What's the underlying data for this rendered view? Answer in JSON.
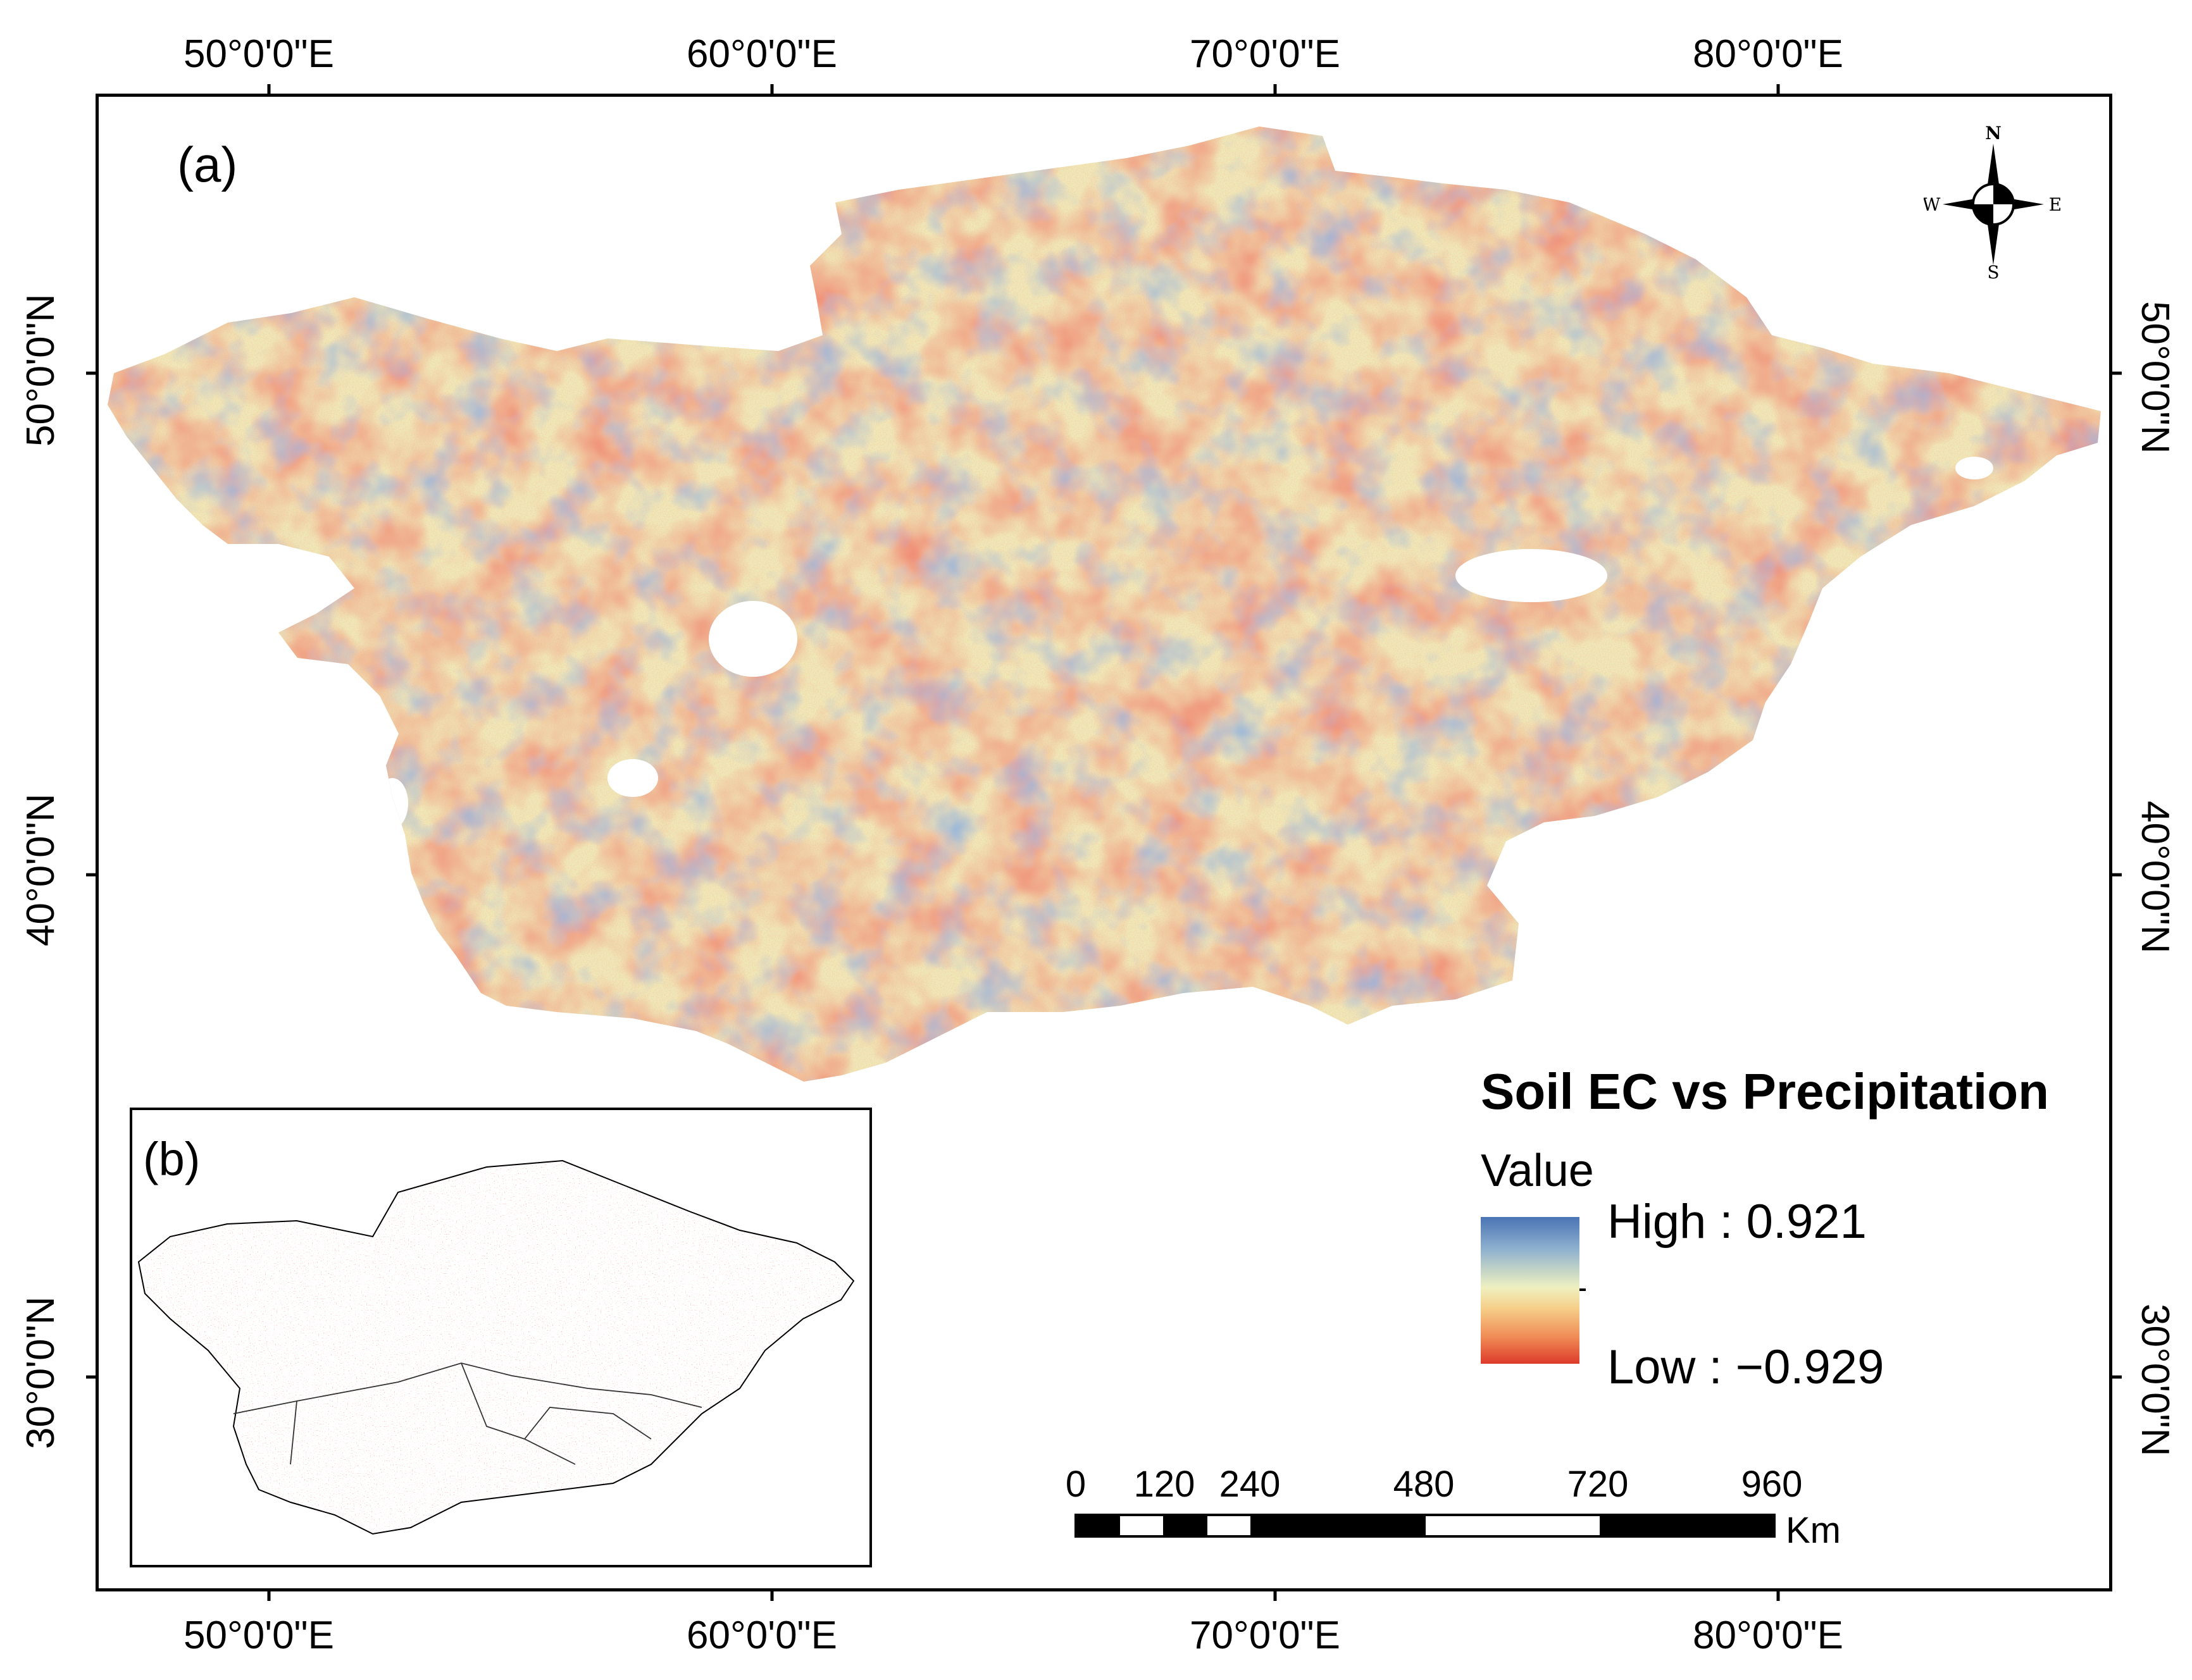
{
  "panel_labels": {
    "main": "(a)",
    "inset": "(b)"
  },
  "axes": {
    "longitude_ticks": [
      "50°0'0\"E",
      "60°0'0\"E",
      "70°0'0\"E",
      "80°0'0\"E"
    ],
    "latitude_ticks": [
      "50°0'0\"N",
      "40°0'0\"N",
      "30°0'0\"N"
    ]
  },
  "legend": {
    "title": "Soil EC vs Precipitation",
    "subtitle": "Value",
    "high_label": "High : 0.921",
    "low_label": "Low : −0.929",
    "ramp_colors": [
      "#4a74b4",
      "#8fb1cf",
      "#eef0c0",
      "#f6d08a",
      "#f08a55",
      "#dd3a2a"
    ]
  },
  "scale_bar": {
    "labels": [
      "0",
      "120",
      "240",
      "480",
      "720",
      "960"
    ],
    "unit": "Km"
  },
  "north_arrow": {
    "n": "N",
    "s": "S",
    "e": "E",
    "w": "W"
  },
  "colors": {
    "low": "#dd3a2a",
    "mid": "#eef0c0",
    "high": "#4a74b4",
    "background": "#ffffff"
  }
}
